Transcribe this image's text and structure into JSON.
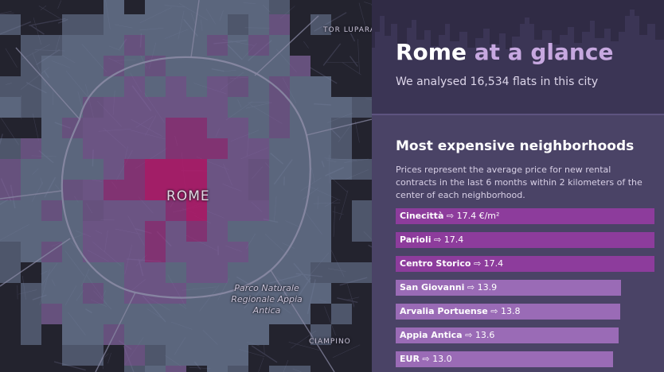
{
  "map": {
    "labels": {
      "city": "ROME",
      "tor_lupara": "TOR LUPARA",
      "ciampino": "CIAMPINO",
      "parco": "Parco Naturale Regionale Appia Antica"
    },
    "colors": {
      "background": "#23232e",
      "low": "#7a8aa8",
      "mid": "#8a6aa8",
      "high": "#a23a8a",
      "max": "#b01e6e",
      "roads": "#8a8aa4"
    }
  },
  "panel": {
    "title_main": "Rome",
    "title_accent": "at a glance",
    "subtitle": "We analysed 16,534 flats in this city",
    "section_heading": "Most expensive neighborhoods",
    "description": "Prices represent the average price for new rental contracts in the last 6 months within 2 kilometers of the center of each neighborhood.",
    "colors": {
      "top_background": "#302b45",
      "background": "#4a4366",
      "title_accent": "#c7a8e0",
      "bar_high": "#8d3c9c",
      "bar_mid": "#9a6bb6"
    }
  },
  "chart_data": {
    "type": "bar",
    "categories": [
      "Cinecittà",
      "Parioli",
      "Centro Storico",
      "San Giovanni",
      "Arvalia Portuense",
      "Appia Antica",
      "EUR"
    ],
    "values": [
      17.4,
      17.4,
      17.4,
      13.9,
      13.8,
      13.6,
      13.0
    ],
    "value_labels": [
      "⇨ 17.4 €/m²",
      "⇨ 17.4",
      "⇨ 17.4",
      "⇨ 13.9",
      "⇨ 13.8",
      "⇨ 13.6",
      "⇨ 13.0"
    ],
    "title": "Most expensive neighborhoods",
    "xlabel": "",
    "ylabel": "",
    "xlim": [
      0,
      17.4
    ]
  }
}
